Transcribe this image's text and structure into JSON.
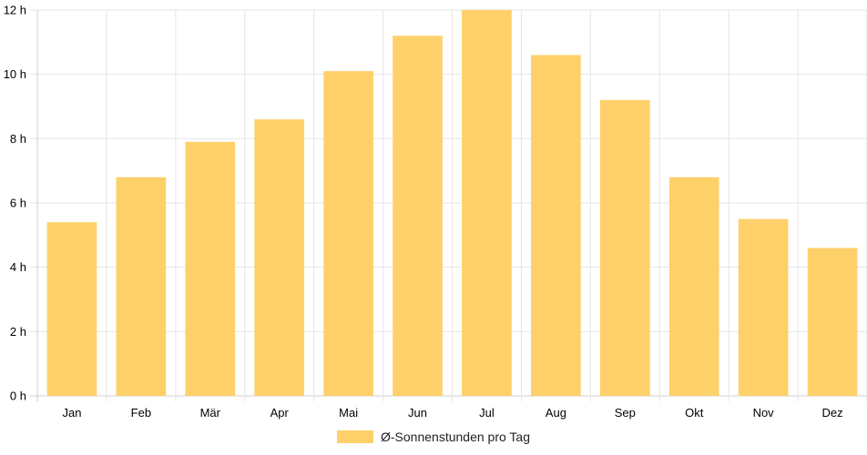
{
  "chart_data": {
    "type": "bar",
    "categories": [
      "Jan",
      "Feb",
      "Mär",
      "Apr",
      "Mai",
      "Jun",
      "Jul",
      "Aug",
      "Sep",
      "Okt",
      "Nov",
      "Dez"
    ],
    "series": [
      {
        "name": "Ø-Sonnenstunden pro Tag",
        "values": [
          5.4,
          6.8,
          7.9,
          8.6,
          10.1,
          11.2,
          12.0,
          10.6,
          9.2,
          6.8,
          5.5,
          4.6
        ],
        "color": "#fed06a"
      }
    ],
    "y_tick_labels": [
      "0 h",
      "2 h",
      "4 h",
      "6 h",
      "8 h",
      "10 h",
      "12 h"
    ],
    "ylim": [
      0,
      12
    ],
    "grid": true,
    "legend_position": "bottom"
  }
}
